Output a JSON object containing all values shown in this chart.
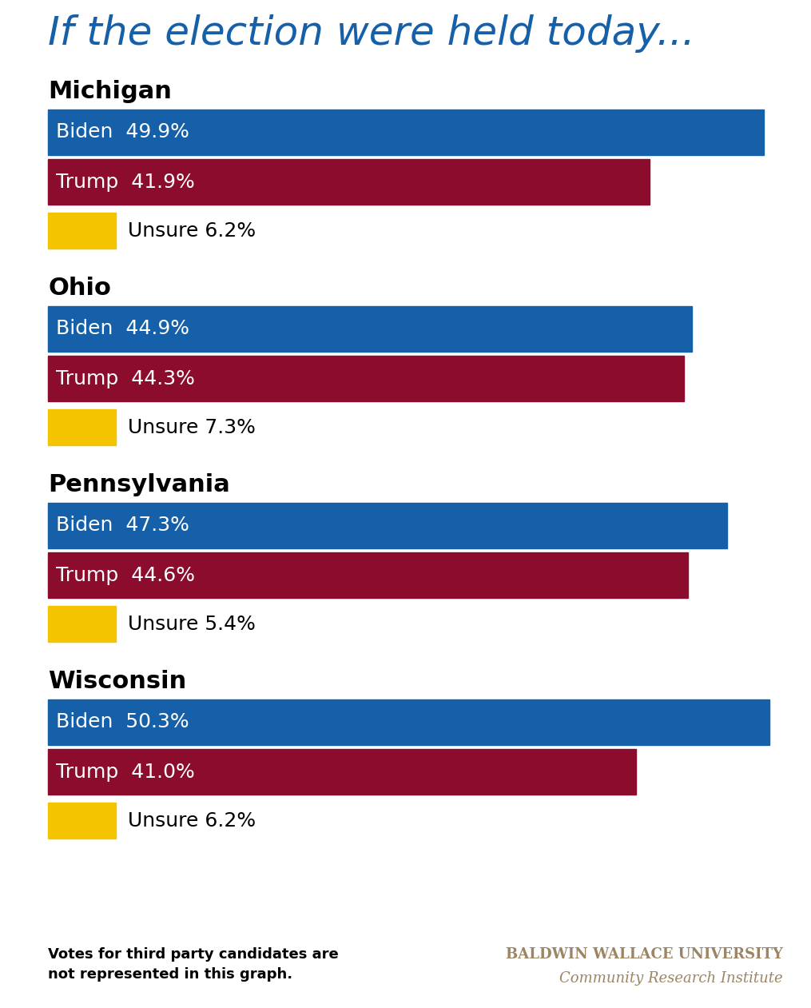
{
  "title": "If the election were held today...",
  "title_color": "#1560a8",
  "title_fontsize": 36,
  "states": [
    "Michigan",
    "Ohio",
    "Pennsylvania",
    "Wisconsin"
  ],
  "data": {
    "Michigan": {
      "Biden": 49.9,
      "Trump": 41.9,
      "Unsure": 6.2
    },
    "Ohio": {
      "Biden": 44.9,
      "Trump": 44.3,
      "Unsure": 7.3
    },
    "Pennsylvania": {
      "Biden": 47.3,
      "Trump": 44.6,
      "Unsure": 5.4
    },
    "Wisconsin": {
      "Biden": 50.3,
      "Trump": 41.0,
      "Unsure": 6.2
    }
  },
  "scale_max": 51.5,
  "biden_color": "#1560a8",
  "trump_color": "#8b0c2c",
  "unsure_color": "#f5c400",
  "bar_text_color": "#ffffff",
  "state_label_color": "#000000",
  "state_fontsize": 22,
  "bar_fontsize": 18,
  "unsure_label_color": "#000000",
  "unsure_fontsize": 18,
  "footnote": "Votes for third party candidates are\nnot represented in this graph.",
  "footnote_fontsize": 13,
  "university_text": "BALDWIN WALLACE UNIVERSITY",
  "cri_text": "Community Research Institute",
  "university_color": "#9b8565",
  "cri_color": "#9b8565",
  "university_fontsize": 13,
  "cri_fontsize": 13
}
